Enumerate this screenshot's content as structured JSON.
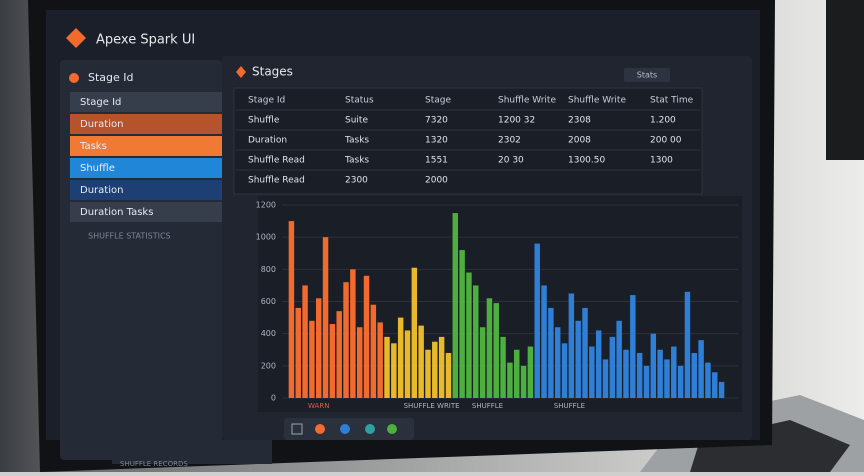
{
  "header": {
    "title": "Apexe Spark UI"
  },
  "sidebar": {
    "title": "Stage Id",
    "items": [
      "Stage Id",
      "Duration",
      "Tasks",
      "Shuffle",
      "Duration",
      "Duration Tasks"
    ],
    "footer": "SHUFFLE STATISTICS"
  },
  "main": {
    "title": "Stages",
    "filter": "Stats",
    "table": {
      "rows": [
        [
          "Stage Id",
          "Status",
          "Stage",
          "Shuffle Write",
          "Shuffle Write",
          "Stat Time"
        ],
        [
          "Shuffle",
          "Suite",
          "7320",
          "1200 32",
          "2308",
          "1.200"
        ],
        [
          "Duration",
          "Tasks",
          "1320",
          "2302",
          "2008",
          "200 00"
        ],
        [
          "Shuffle Read",
          "Tasks",
          "1551",
          "20 30",
          "1300.50",
          "1300"
        ],
        [
          "Shuffle Read",
          "2300",
          "2000"
        ]
      ]
    }
  },
  "chart": {
    "type": "bar",
    "ylim": [
      0,
      1200
    ],
    "yticks": [
      1200,
      1000,
      800,
      600,
      400,
      200,
      0
    ],
    "series": [
      {
        "color": "#f26a2e",
        "values": [
          1100,
          560,
          700,
          480,
          620,
          1000,
          460,
          540,
          720,
          800,
          440,
          760,
          580,
          470
        ]
      },
      {
        "color": "#e8b92a",
        "values": [
          380,
          340,
          500,
          420,
          810,
          450,
          300,
          350,
          380,
          280
        ]
      },
      {
        "color": "#4caf3e",
        "values": [
          1150,
          920,
          780,
          700,
          440,
          620,
          590,
          380,
          220,
          300,
          200,
          320
        ]
      },
      {
        "color": "#2f7fd6",
        "values": [
          960,
          700,
          560,
          440,
          340,
          650,
          480,
          560,
          320,
          420,
          240,
          380,
          480,
          300,
          640,
          280,
          200,
          400,
          300,
          240,
          320,
          200,
          660,
          280,
          360,
          220,
          160,
          100
        ]
      }
    ],
    "x_labels": [
      "WARN",
      "SHUFFLE WRITE",
      "SHUFFLE",
      "SHUFFLE"
    ]
  },
  "status": "SHUFFLE RECORDS"
}
